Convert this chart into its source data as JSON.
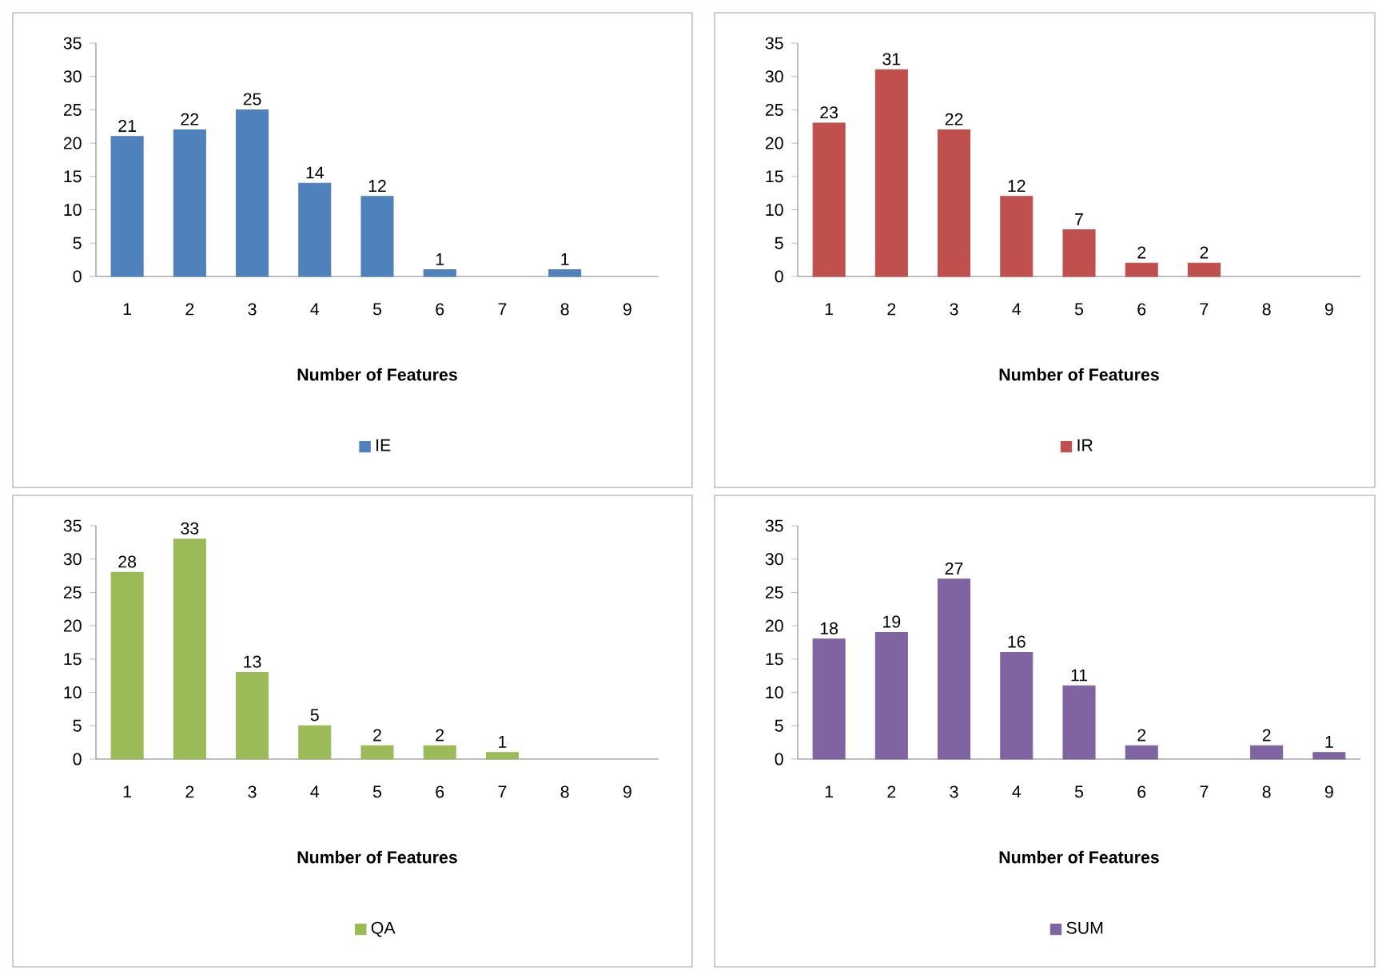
{
  "chart_data": [
    {
      "type": "bar",
      "xlabel": "Number of Features",
      "categories": [
        "1",
        "2",
        "3",
        "4",
        "5",
        "6",
        "7",
        "8",
        "9"
      ],
      "series": [
        {
          "name": "IE",
          "color": "#4f81bd",
          "values": [
            21,
            22,
            25,
            14,
            12,
            1,
            null,
            1,
            null
          ]
        }
      ],
      "ylim": [
        0,
        35
      ],
      "yticks": [
        0,
        5,
        10,
        15,
        20,
        25,
        30,
        35
      ],
      "data_labels": true,
      "legend": "bottom",
      "grid": false
    },
    {
      "type": "bar",
      "xlabel": "Number of Features",
      "categories": [
        "1",
        "2",
        "3",
        "4",
        "5",
        "6",
        "7",
        "8",
        "9"
      ],
      "series": [
        {
          "name": "IR",
          "color": "#c0504d",
          "values": [
            23,
            31,
            22,
            12,
            7,
            2,
            2,
            null,
            null
          ]
        }
      ],
      "ylim": [
        0,
        35
      ],
      "yticks": [
        0,
        5,
        10,
        15,
        20,
        25,
        30,
        35
      ],
      "data_labels": true,
      "legend": "bottom",
      "grid": false
    },
    {
      "type": "bar",
      "xlabel": "Number of Features",
      "categories": [
        "1",
        "2",
        "3",
        "4",
        "5",
        "6",
        "7",
        "8",
        "9"
      ],
      "series": [
        {
          "name": "QA",
          "color": "#9bbb59",
          "values": [
            28,
            33,
            13,
            5,
            2,
            2,
            1,
            null,
            null
          ]
        }
      ],
      "ylim": [
        0,
        35
      ],
      "yticks": [
        0,
        5,
        10,
        15,
        20,
        25,
        30,
        35
      ],
      "data_labels": true,
      "legend": "bottom",
      "grid": false
    },
    {
      "type": "bar",
      "xlabel": "Number of Features",
      "categories": [
        "1",
        "2",
        "3",
        "4",
        "5",
        "6",
        "7",
        "8",
        "9"
      ],
      "series": [
        {
          "name": "SUM",
          "color": "#8064a2",
          "values": [
            18,
            19,
            27,
            16,
            11,
            2,
            null,
            2,
            1
          ]
        }
      ],
      "ylim": [
        0,
        35
      ],
      "yticks": [
        0,
        5,
        10,
        15,
        20,
        25,
        30,
        35
      ],
      "data_labels": true,
      "legend": "bottom",
      "grid": false
    }
  ]
}
